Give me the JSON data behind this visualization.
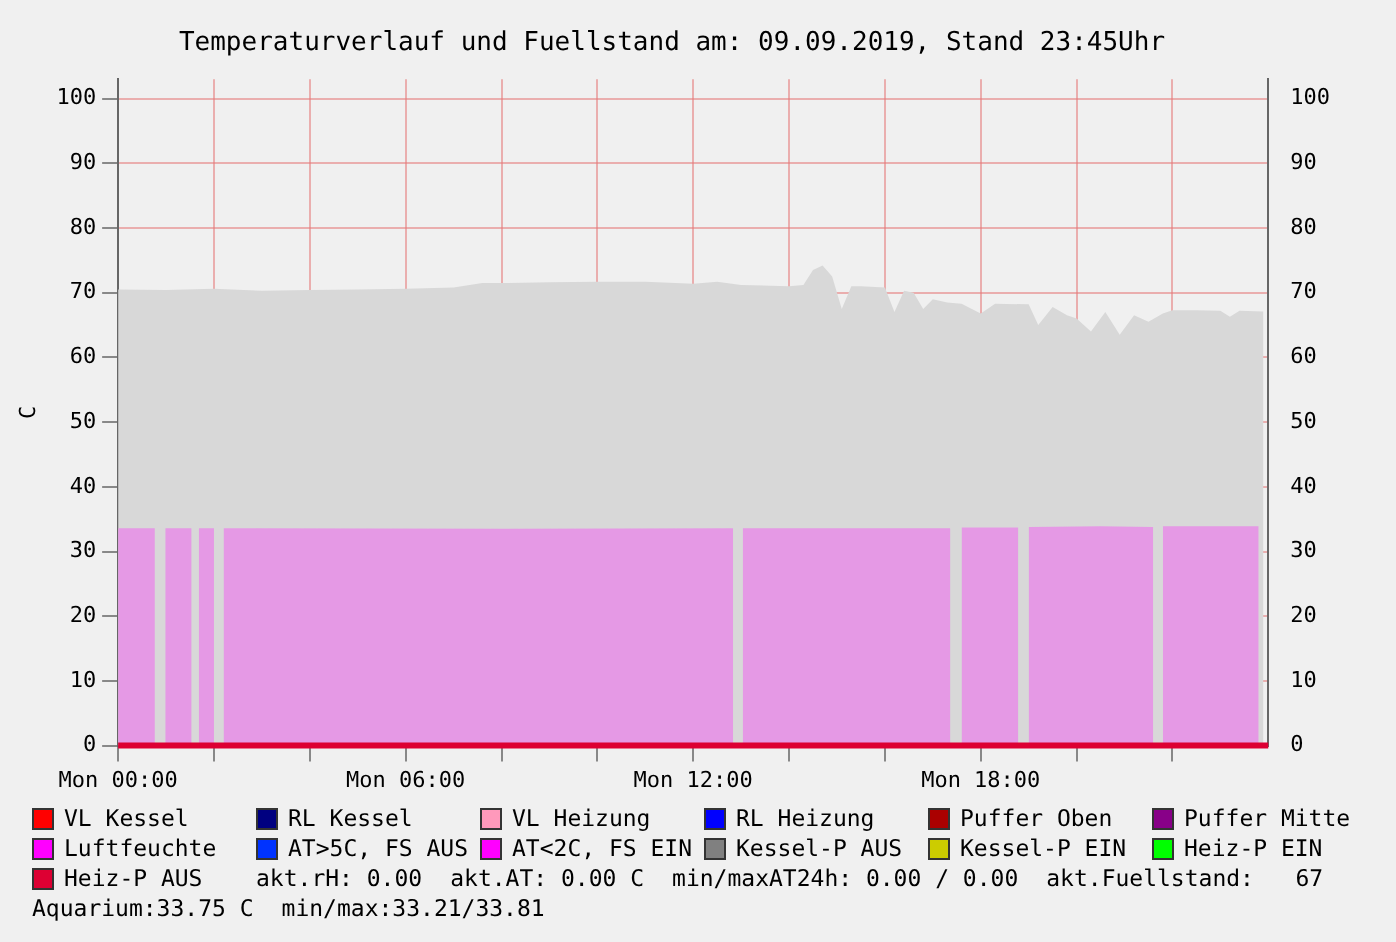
{
  "chart_data": {
    "type": "area",
    "title": "Temperaturverlauf und Fuellstand am: 09.09.2019, Stand 23:45Uhr",
    "ylabel": "C",
    "xlim": [
      "2019-09-09T00:00",
      "2019-09-10T00:00"
    ],
    "xticks": [
      {
        "value": "2019-09-09T00:00",
        "label": "Mon 00:00"
      },
      {
        "value": "2019-09-09T02:00",
        "label": null
      },
      {
        "value": "2019-09-09T04:00",
        "label": null
      },
      {
        "value": "2019-09-09T06:00",
        "label": "Mon 06:00"
      },
      {
        "value": "2019-09-09T08:00",
        "label": null
      },
      {
        "value": "2019-09-09T10:00",
        "label": null
      },
      {
        "value": "2019-09-09T12:00",
        "label": "Mon 12:00"
      },
      {
        "value": "2019-09-09T14:00",
        "label": null
      },
      {
        "value": "2019-09-09T16:00",
        "label": null
      },
      {
        "value": "2019-09-09T18:00",
        "label": "Mon 18:00"
      },
      {
        "value": "2019-09-09T20:00",
        "label": null
      },
      {
        "value": "2019-09-09T22:00",
        "label": null
      }
    ],
    "ylim": [
      0,
      103
    ],
    "yticks": [
      0,
      10,
      20,
      30,
      40,
      50,
      60,
      70,
      80,
      90,
      100
    ],
    "y2lim": [
      0,
      103
    ],
    "y2ticks": [
      0,
      10,
      20,
      30,
      40,
      50,
      60,
      70,
      80,
      90,
      100
    ],
    "grid": true,
    "legend": "bottom",
    "x": [
      "2019-09-09T00:00",
      "2019-09-10T00:00"
    ],
    "series": [
      {
        "color": "#d8d8d8",
        "x": [
          "2019-09-09T00:00",
          "2019-09-09T01:00",
          "2019-09-09T02:00",
          "2019-09-09T03:00",
          "2019-09-09T04:00",
          "2019-09-09T05:00",
          "2019-09-09T06:00",
          "2019-09-09T07:00",
          "2019-09-09T07:36",
          "2019-09-09T08:00",
          "2019-09-09T09:00",
          "2019-09-09T10:00",
          "2019-09-09T11:00",
          "2019-09-09T12:00",
          "2019-09-09T12:30",
          "2019-09-09T13:00",
          "2019-09-09T14:00",
          "2019-09-09T14:18",
          "2019-09-09T14:30",
          "2019-09-09T14:42",
          "2019-09-09T14:54",
          "2019-09-09T15:06",
          "2019-09-09T15:18",
          "2019-09-09T15:30",
          "2019-09-09T16:00",
          "2019-09-09T16:12",
          "2019-09-09T16:24",
          "2019-09-09T16:36",
          "2019-09-09T16:48",
          "2019-09-09T17:00",
          "2019-09-09T17:18",
          "2019-09-09T17:36",
          "2019-09-09T18:00",
          "2019-09-09T18:18",
          "2019-09-09T19:00",
          "2019-09-09T19:12",
          "2019-09-09T19:30",
          "2019-09-09T19:48",
          "2019-09-09T20:00",
          "2019-09-09T20:18",
          "2019-09-09T20:36",
          "2019-09-09T20:54",
          "2019-09-09T21:12",
          "2019-09-09T21:30",
          "2019-09-09T21:48",
          "2019-09-09T22:00",
          "2019-09-09T22:30",
          "2019-09-09T23:00",
          "2019-09-09T23:12",
          "2019-09-09T23:24",
          "2019-09-09T23:54"
        ],
        "values": [
          70.5,
          70.4,
          70.6,
          70.3,
          70.4,
          70.5,
          70.6,
          70.8,
          71.5,
          71.5,
          71.6,
          71.7,
          71.7,
          71.4,
          71.7,
          71.2,
          71.0,
          71.2,
          73.5,
          74.2,
          72.5,
          67.5,
          71,
          71,
          70.8,
          67,
          70.3,
          70,
          67.5,
          69,
          68.5,
          68.3,
          66.8,
          68.3,
          68.2,
          65,
          67.8,
          66.5,
          66,
          64,
          67,
          63.5,
          66.5,
          65.5,
          66.8,
          67.3,
          67.3,
          67.2,
          66.3,
          67.2,
          67.1
        ]
      },
      {
        "type": "area",
        "color": "#e599e5",
        "x": [
          "2019-09-09T00:00",
          "2019-09-09T00:46",
          "2019-09-09T00:47",
          "2019-09-09T00:59",
          "2019-09-09T01:32",
          "2019-09-09T01:33",
          "2019-09-09T01:41",
          "2019-09-09T02:00",
          "2019-09-09T02:01",
          "2019-09-09T02:12",
          "2019-09-09T08:00",
          "2019-09-09T12:50",
          "2019-09-09T12:51",
          "2019-09-09T13:02",
          "2019-09-09T17:22",
          "2019-09-09T17:23",
          "2019-09-09T17:36",
          "2019-09-09T18:47",
          "2019-09-09T18:48",
          "2019-09-09T19:00",
          "2019-09-09T20:30",
          "2019-09-09T21:36",
          "2019-09-09T21:37",
          "2019-09-09T21:48",
          "2019-09-09T23:48"
        ],
        "values": [
          33.6,
          33.6,
          null,
          33.6,
          33.6,
          null,
          33.6,
          33.6,
          null,
          33.6,
          33.5,
          33.6,
          null,
          33.6,
          33.6,
          null,
          33.7,
          33.7,
          null,
          33.8,
          33.9,
          33.8,
          null,
          33.9,
          33.9
        ]
      },
      {
        "type": "line",
        "name": "VL Kessel",
        "color": "#ff0000",
        "values": [
          null,
          null
        ]
      },
      {
        "type": "line",
        "name": "RL Kessel",
        "color": "#000080",
        "values": [
          null,
          null
        ]
      },
      {
        "type": "line",
        "name": "VL Heizung",
        "color": "#ff99bb",
        "values": [
          null,
          null
        ]
      },
      {
        "type": "line",
        "name": "RL Heizung",
        "color": "#0000ff",
        "values": [
          null,
          null
        ]
      },
      {
        "type": "line",
        "name": "Puffer Oben",
        "color": "#aa0000",
        "values": [
          null,
          null
        ]
      },
      {
        "type": "line",
        "name": "Puffer Mitte",
        "color": "#880088",
        "values": [
          null,
          null
        ]
      },
      {
        "type": "line",
        "name": "Luftfeuchte",
        "color": "#ff00ff",
        "values": [
          null,
          null
        ]
      },
      {
        "type": "line",
        "name": "AT>5C, FS AUS",
        "color": "#0033ff",
        "values": [
          null,
          null
        ]
      },
      {
        "type": "line",
        "name": "AT<2C, FS EIN",
        "color": "#ff00ff",
        "values": [
          null,
          null
        ]
      },
      {
        "type": "line",
        "name": "Kessel-P AUS",
        "color": "#808080",
        "values": [
          null,
          null
        ]
      },
      {
        "type": "line",
        "name": "Kessel-P EIN",
        "color": "#cccc00",
        "values": [
          null,
          null
        ]
      },
      {
        "type": "line",
        "name": "Heiz-P EIN",
        "color": "#00ff00",
        "values": [
          null,
          null
        ]
      },
      {
        "type": "line",
        "name": "Heiz-P AUS",
        "color": "#dd0033",
        "values": [
          0,
          0
        ]
      }
    ],
    "annotations": [
      "akt.rH: 0.00",
      "akt.AT: 0.00 C",
      "min/maxAT24h: 0.00 / 0.00",
      "akt.Fuellstand:   67",
      "Aquarium:33.75 C",
      "min/max:33.21/33.81"
    ]
  }
}
